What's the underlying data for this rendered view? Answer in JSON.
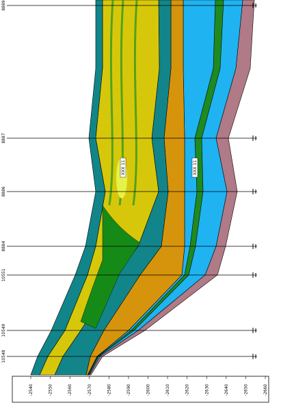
{
  "wells": [
    {
      "label": "8889"
    },
    {
      "label": "8887"
    },
    {
      "label": "8886"
    },
    {
      "label": "8884"
    },
    {
      "label": "10551"
    },
    {
      "label": "10549"
    },
    {
      "label": "10548"
    }
  ],
  "depth_axis": {
    "ticks": [
      -2540,
      -2550,
      -2560,
      -2570,
      -2580,
      -2590,
      -2600,
      -2610,
      -2620,
      -2630,
      -2640,
      -2650,
      -2660
    ]
  },
  "annotations": [
    "XXX 11",
    "XXX 11"
  ]
}
